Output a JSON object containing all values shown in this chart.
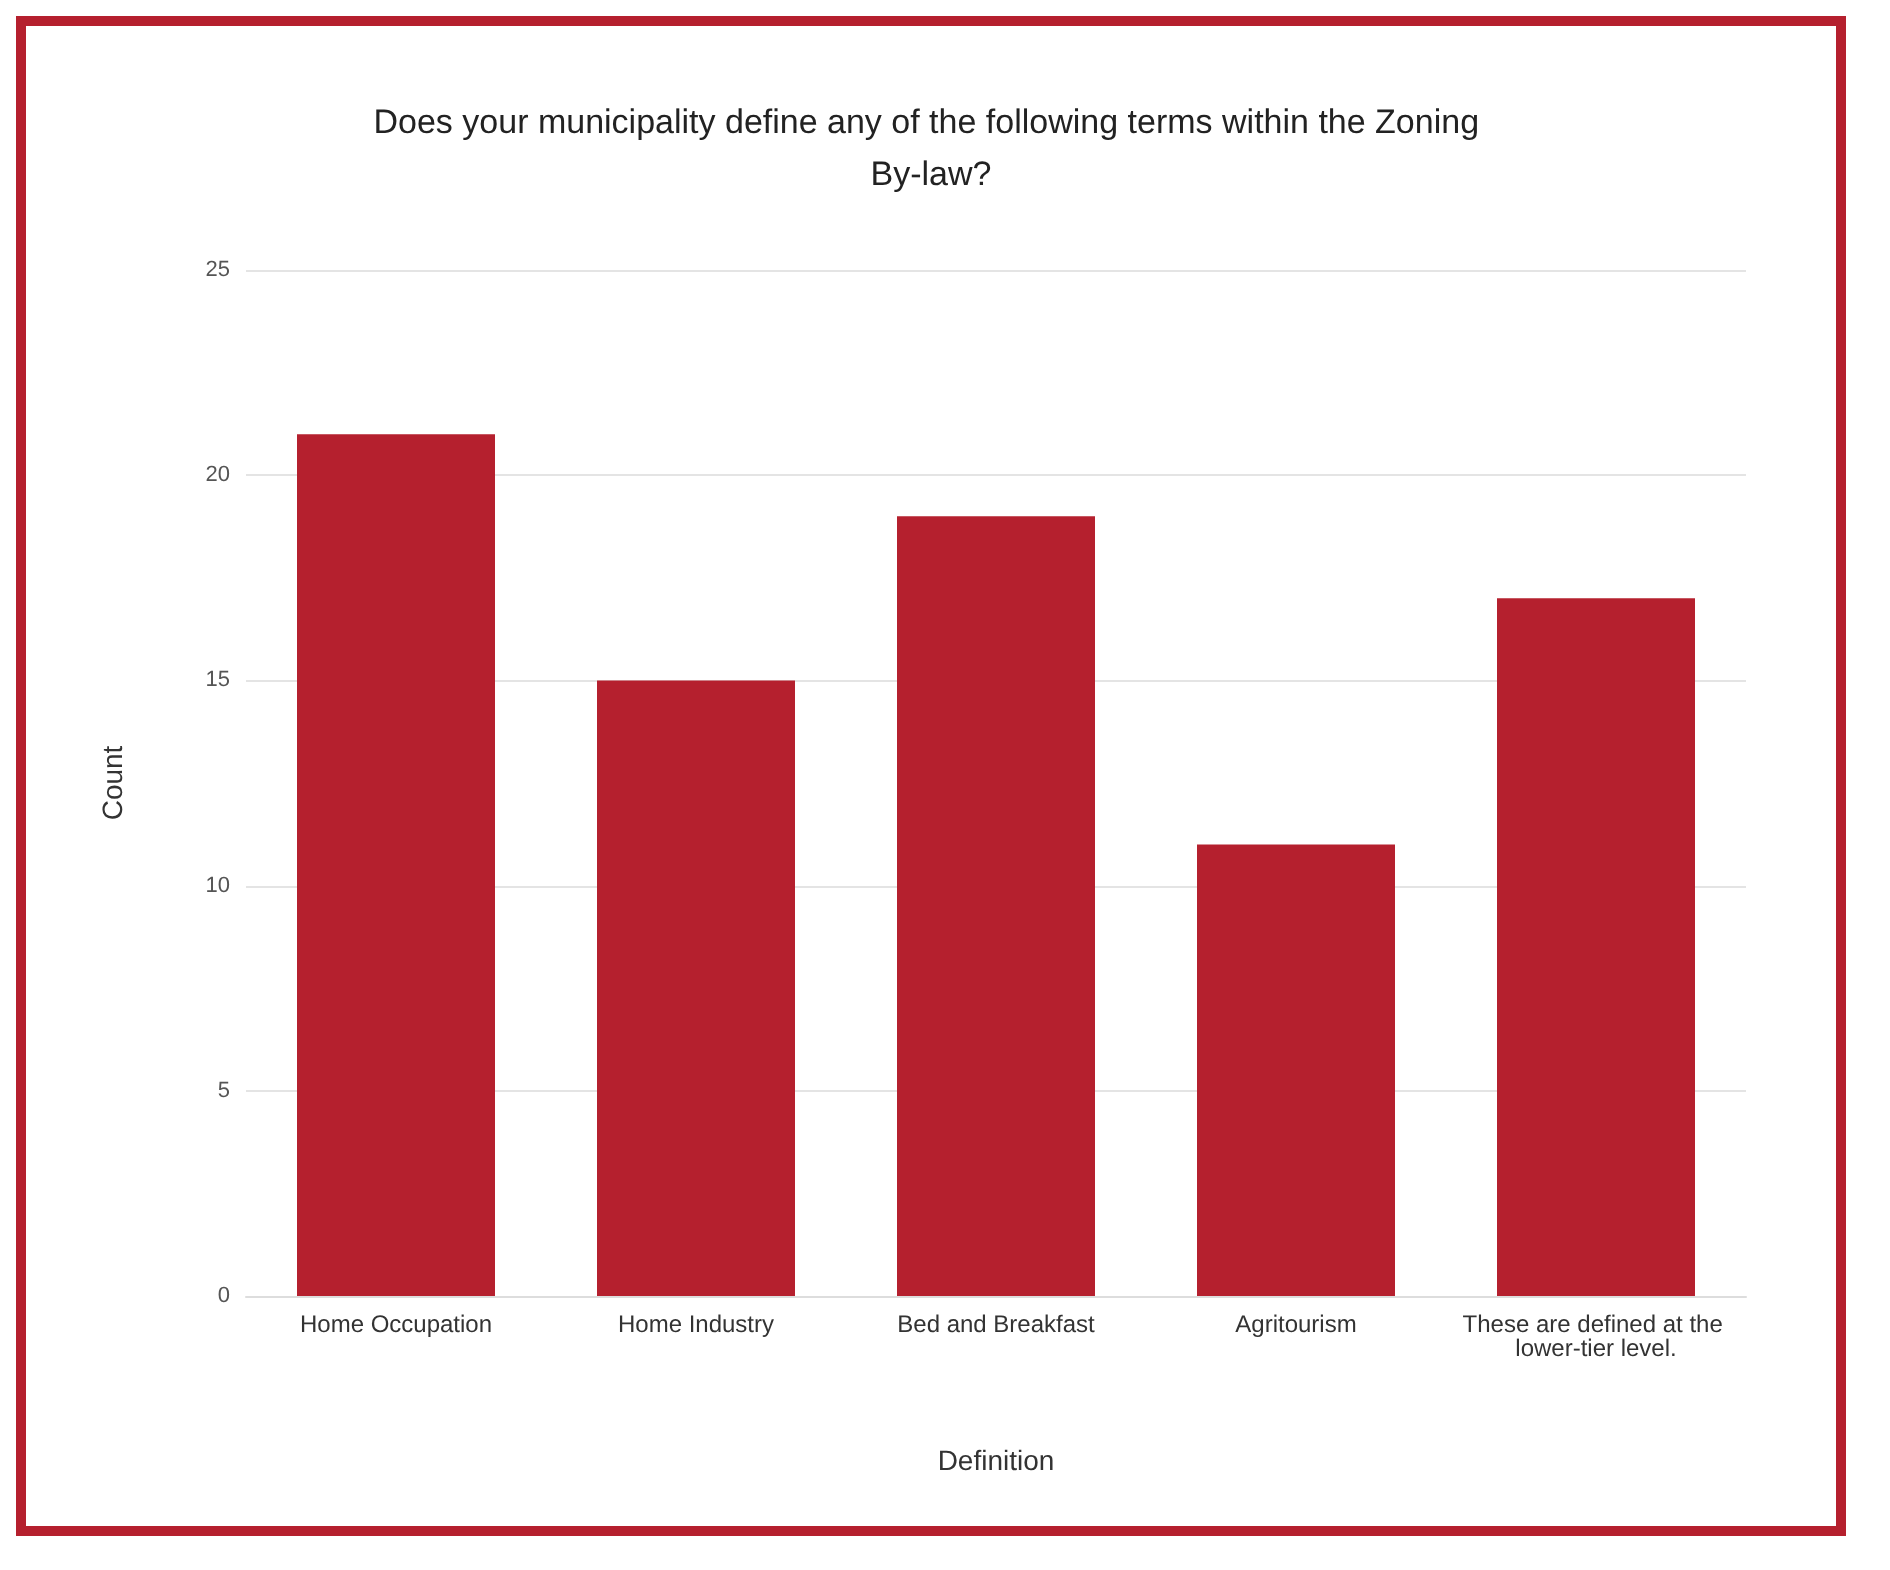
{
  "chart_data": {
    "type": "bar",
    "title": "Does your municipality define any of the following terms within the Zoning By-law?",
    "xlabel": "Definition",
    "ylabel": "Count",
    "categories": [
      "Home Occupation",
      "Home Industry",
      "Bed and Breakfast",
      "Agritourism",
      "These are defined at the lower-tier level."
    ],
    "values": [
      21,
      15,
      19,
      11,
      17
    ],
    "color": "#b5202e",
    "ylim": [
      0,
      25
    ],
    "yticks": [
      0,
      5,
      10,
      15,
      20,
      25
    ],
    "grid": "y"
  }
}
